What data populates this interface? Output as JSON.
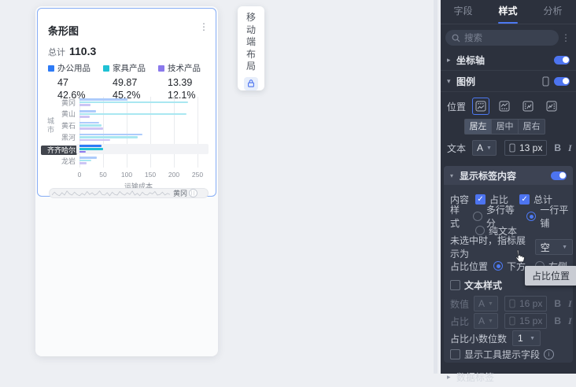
{
  "chart_data": {
    "type": "bar",
    "orientation": "horizontal",
    "title": "条形图",
    "categories": [
      "黄冈",
      "黄山",
      "黄石",
      "黑河",
      "齐齐哈尔",
      "龙岩"
    ],
    "series": [
      {
        "name": "办公用品",
        "values": [
          102,
          35,
          42,
          133,
          47,
          36
        ]
      },
      {
        "name": "家具产品",
        "values": [
          230,
          227,
          47,
          123,
          49.87,
          25
        ]
      },
      {
        "name": "技术产品",
        "values": [
          23,
          22,
          50,
          65,
          13.39,
          15
        ]
      }
    ],
    "xlabel": "运输成本",
    "ylabel": "城市",
    "xlim": [
      0,
      250
    ],
    "xticks": [
      0,
      50,
      100,
      150,
      200,
      250
    ],
    "selected_category": "齐齐哈尔",
    "total": 110.3,
    "colors": [
      "#2e7bf6",
      "#1fc1d4",
      "#8a79ec"
    ],
    "colors_faded": [
      "#adcbfb",
      "#a9e7f1",
      "#cdc5f4"
    ],
    "legend_position": "top",
    "grid": true
  },
  "canvas": {
    "card": {
      "title": "条形图",
      "more_icon": "⋮",
      "total_label": "总计",
      "total_value": "110.3",
      "legend": [
        {
          "name": "办公用品",
          "value": "47",
          "percent": "42.6%"
        },
        {
          "name": "家具产品",
          "value": "49.87",
          "percent": "45.2%"
        },
        {
          "name": "技术产品",
          "value": "13.39",
          "percent": "12.1%"
        }
      ],
      "scrollbar": {
        "label": "黄冈",
        "profile": [
          2,
          7,
          3,
          1,
          6,
          2,
          9,
          4,
          2,
          7,
          3,
          1,
          5,
          2,
          8,
          3,
          6,
          2,
          4,
          9,
          3,
          2,
          6,
          1,
          7,
          3,
          2,
          8,
          4,
          2,
          6,
          3,
          9,
          2,
          5,
          1,
          7,
          3,
          2,
          6,
          4,
          8,
          2,
          3,
          7,
          2,
          5,
          3
        ]
      }
    },
    "toolbar": {
      "label": "移动端布局",
      "chars": [
        "移",
        "动",
        "端",
        "布",
        "局"
      ],
      "lock_icon": "lock"
    }
  },
  "panel": {
    "tabs": {
      "fields": "字段",
      "style": "样式",
      "analysis": "分析"
    },
    "search": {
      "placeholder": "搜索",
      "more_icon": "⋮"
    },
    "axis": {
      "title": "坐标轴",
      "enabled": true
    },
    "legend": {
      "title": "图例",
      "enabled": true,
      "position_label": "位置",
      "aligns": {
        "left": "居左",
        "center": "居中",
        "right": "居右"
      },
      "align_selected": "居左",
      "text_label": "文本",
      "font_letter": "A",
      "font_size": "13 px",
      "bold": "B",
      "italic": "I"
    },
    "labels": {
      "title": "显示标签内容",
      "enabled": true,
      "content_label": "内容",
      "opt_percent": "占比",
      "opt_percent_checked": true,
      "opt_total": "总计",
      "opt_total_checked": true,
      "style_label": "样式",
      "style_multiline": "多行等分",
      "style_oneline": "一行平铺",
      "style_plain": "纯文本",
      "style_selected": "一行平铺",
      "unselected_label": "未选中时，指标展示为",
      "unselected_value": "空",
      "percent_pos_label": "占比位置",
      "pos_below": "下方",
      "pos_right": "右侧",
      "pos_selected": "下方",
      "tooltip": "占比位置",
      "text_style_label": "文本样式",
      "value_label": "数值",
      "font_letter": "A",
      "value_size": "16 px",
      "percent_label": "占比",
      "percent_size": "15 px",
      "bold": "B",
      "italic": "I",
      "decimal_label": "占比小数位数",
      "decimal_value": "1",
      "tooltip_field_label": "显示工具提示字段"
    },
    "next_section": {
      "title": "数据标签"
    }
  }
}
